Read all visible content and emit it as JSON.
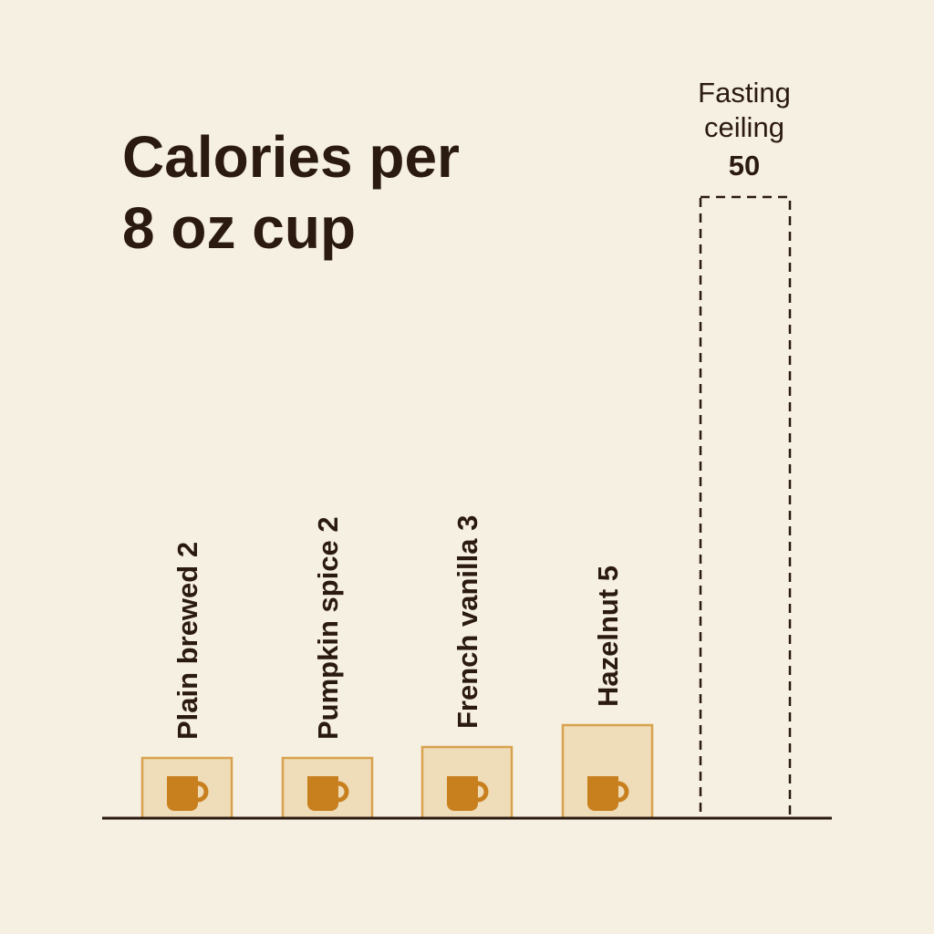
{
  "chart_data": {
    "type": "bar",
    "title_lines": [
      "Calories per",
      "8 oz cup"
    ],
    "categories": [
      "Plain brewed",
      "Pumpkin spice",
      "French vanilla",
      "Hazelnut"
    ],
    "values": [
      2,
      2,
      3,
      5
    ],
    "bar_labels": [
      "Plain brewed 2",
      "Pumpkin spice 2",
      "French vanilla 3",
      "Hazelnut 5"
    ],
    "reference": {
      "label_lines": [
        "Fasting",
        "ceiling"
      ],
      "value": 50,
      "value_label": "50",
      "style": "dashed outline bar"
    },
    "bar_icon": "coffee-mug-icon",
    "colors": {
      "background": "#f6f0e2",
      "bar_fill": "#efdcb8",
      "bar_stroke": "#d8a24e",
      "mug": "#c8801f",
      "text": "#2b1a10"
    }
  }
}
